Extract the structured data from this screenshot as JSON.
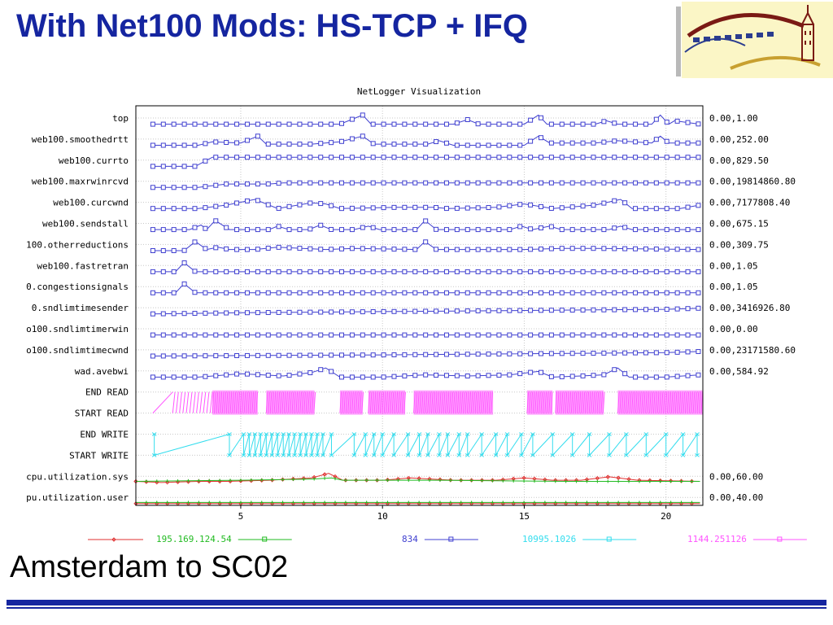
{
  "slide": {
    "title": "With Net100 Mods: HS-TCP + IFQ",
    "subtitle": "Amsterdam to SC02"
  },
  "colors": {
    "title": "#1525a0",
    "blue_series": "#4040d0",
    "magenta_series": "#ff55ff",
    "cyan_series": "#33ddee",
    "red_series": "#e03030",
    "green_series": "#22bb22",
    "logo_bg": "#fbf6c6",
    "logo_stroke": "#7a1a14"
  },
  "logo": {
    "icon": "building-arch-logo"
  },
  "chart_data": {
    "type": "line",
    "title": "NetLogger Visualization",
    "xlim": [
      1.3,
      21.3
    ],
    "xticks": [
      5,
      10,
      15,
      20
    ],
    "grid": true,
    "rows": [
      {
        "label": "top",
        "range": "0.00,1.00"
      },
      {
        "label": "web100.smoothedrtt",
        "range": "0.00,252.00"
      },
      {
        "label": "web100.currto",
        "range": "0.00,829.50"
      },
      {
        "label": "web100.maxrwinrcvd",
        "range": "0.00,19814860.80"
      },
      {
        "label": "web100.curcwnd",
        "range": "0.00,7177808.40"
      },
      {
        "label": "web100.sendstall",
        "range": "0.00,675.15"
      },
      {
        "label": "100.otherreductions",
        "range": "0.00,309.75"
      },
      {
        "label": "web100.fastretran",
        "range": "0.00,1.05"
      },
      {
        "label": "0.congestionsignals",
        "range": "0.00,1.05"
      },
      {
        "label": "0.sndlimtimesender",
        "range": "0.00,3416926.80"
      },
      {
        "label": "o100.sndlimtimerwin",
        "range": "0.00,0.00"
      },
      {
        "label": "o100.sndlimtimecwnd",
        "range": "0.00,23171580.60"
      },
      {
        "label": "wad.avebwi",
        "range": "0.00,584.92"
      },
      {
        "label": "END READ",
        "range": ""
      },
      {
        "label": "START READ",
        "range": ""
      },
      {
        "label": "END WRITE",
        "range": ""
      },
      {
        "label": "START WRITE",
        "range": ""
      },
      {
        "label": "cpu.utilization.sys",
        "range": "0.00,60.00"
      },
      {
        "label": "pu.utilization.user",
        "range": "0.00,40.00"
      }
    ],
    "series": [
      {
        "row": 0,
        "values": [
          [
            1.9,
            0.1
          ],
          [
            5.0,
            0.1
          ],
          [
            8.5,
            0.1
          ],
          [
            9.3,
            0.9
          ],
          [
            9.6,
            0.1
          ],
          [
            12.5,
            0.1
          ],
          [
            13.0,
            0.5
          ],
          [
            13.4,
            0.1
          ],
          [
            15.0,
            0.1
          ],
          [
            15.5,
            0.9
          ],
          [
            15.8,
            0.1
          ],
          [
            17.5,
            0.1
          ],
          [
            17.9,
            0.4
          ],
          [
            18.3,
            0.1
          ],
          [
            19.5,
            0.1
          ],
          [
            19.8,
            0.9
          ],
          [
            20.1,
            0.1
          ],
          [
            20.3,
            0.4
          ],
          [
            21.2,
            0.1
          ]
        ]
      },
      {
        "row": 1,
        "values": [
          [
            1.9,
            0.1
          ],
          [
            3.5,
            0.1
          ],
          [
            4.0,
            0.4
          ],
          [
            5.0,
            0.3
          ],
          [
            5.6,
            0.9
          ],
          [
            5.9,
            0.2
          ],
          [
            7.5,
            0.2
          ],
          [
            8.5,
            0.4
          ],
          [
            9.3,
            0.9
          ],
          [
            9.7,
            0.2
          ],
          [
            11.6,
            0.2
          ],
          [
            12.0,
            0.5
          ],
          [
            12.5,
            0.1
          ],
          [
            15.0,
            0.1
          ],
          [
            15.5,
            0.9
          ],
          [
            15.9,
            0.3
          ],
          [
            17.5,
            0.3
          ],
          [
            18.3,
            0.5
          ],
          [
            19.5,
            0.3
          ],
          [
            19.8,
            0.9
          ],
          [
            20.1,
            0.3
          ],
          [
            21.2,
            0.3
          ]
        ]
      },
      {
        "row": 2,
        "values": [
          [
            1.9,
            0.1
          ],
          [
            3.4,
            0.1
          ],
          [
            4.0,
            0.9
          ],
          [
            21.2,
            0.9
          ]
        ]
      },
      {
        "row": 3,
        "values": [
          [
            1.9,
            0.1
          ],
          [
            3.5,
            0.1
          ],
          [
            4.5,
            0.4
          ],
          [
            6.0,
            0.4
          ],
          [
            6.5,
            0.5
          ],
          [
            21.2,
            0.5
          ]
        ]
      },
      {
        "row": 4,
        "values": [
          [
            1.9,
            0.1
          ],
          [
            3.5,
            0.1
          ],
          [
            4.5,
            0.4
          ],
          [
            5.5,
            0.9
          ],
          [
            6.3,
            0.1
          ],
          [
            7.5,
            0.6
          ],
          [
            8.0,
            0.5
          ],
          [
            8.5,
            0.1
          ],
          [
            10.5,
            0.2
          ],
          [
            11.8,
            0.2
          ],
          [
            12.3,
            0.1
          ],
          [
            14.0,
            0.2
          ],
          [
            15.0,
            0.5
          ],
          [
            16.0,
            0.1
          ],
          [
            17.5,
            0.4
          ],
          [
            18.4,
            0.9
          ],
          [
            18.8,
            0.1
          ],
          [
            20.5,
            0.1
          ],
          [
            21.2,
            0.4
          ]
        ]
      },
      {
        "row": 5,
        "values": [
          [
            1.9,
            0.1
          ],
          [
            3.2,
            0.1
          ],
          [
            3.6,
            0.5
          ],
          [
            3.8,
            0.1
          ],
          [
            4.1,
            0.9
          ],
          [
            4.6,
            0.1
          ],
          [
            6.0,
            0.1
          ],
          [
            6.3,
            0.4
          ],
          [
            6.7,
            0.1
          ],
          [
            7.4,
            0.1
          ],
          [
            7.8,
            0.5
          ],
          [
            8.2,
            0.1
          ],
          [
            9.0,
            0.1
          ],
          [
            9.5,
            0.4
          ],
          [
            9.9,
            0.1
          ],
          [
            11.2,
            0.1
          ],
          [
            11.5,
            0.9
          ],
          [
            11.9,
            0.1
          ],
          [
            14.5,
            0.1
          ],
          [
            14.9,
            0.4
          ],
          [
            15.3,
            0.1
          ],
          [
            15.9,
            0.4
          ],
          [
            16.3,
            0.1
          ],
          [
            18.0,
            0.1
          ],
          [
            18.4,
            0.4
          ],
          [
            18.8,
            0.1
          ],
          [
            21.2,
            0.1
          ]
        ]
      },
      {
        "row": 6,
        "values": [
          [
            1.9,
            0.1
          ],
          [
            3.0,
            0.1
          ],
          [
            3.4,
            0.9
          ],
          [
            3.8,
            0.2
          ],
          [
            4.2,
            0.4
          ],
          [
            4.6,
            0.2
          ],
          [
            5.5,
            0.2
          ],
          [
            6.3,
            0.4
          ],
          [
            8.0,
            0.2
          ],
          [
            9.0,
            0.3
          ],
          [
            11.2,
            0.2
          ],
          [
            11.5,
            0.9
          ],
          [
            11.9,
            0.2
          ],
          [
            15.0,
            0.2
          ],
          [
            16.3,
            0.3
          ],
          [
            17.5,
            0.3
          ],
          [
            21.2,
            0.2
          ]
        ]
      },
      {
        "row": 7,
        "values": [
          [
            1.9,
            0.1
          ],
          [
            2.7,
            0.1
          ],
          [
            3.0,
            0.9
          ],
          [
            3.4,
            0.1
          ],
          [
            21.2,
            0.1
          ]
        ]
      },
      {
        "row": 8,
        "values": [
          [
            1.9,
            0.1
          ],
          [
            2.7,
            0.1
          ],
          [
            3.0,
            0.9
          ],
          [
            3.4,
            0.1
          ],
          [
            19.7,
            0.1
          ],
          [
            21.2,
            0.1
          ]
        ]
      },
      {
        "row": 9,
        "values": [
          [
            1.9,
            0.1
          ],
          [
            5.0,
            0.2
          ],
          [
            10.0,
            0.3
          ],
          [
            15.0,
            0.4
          ],
          [
            20.0,
            0.5
          ],
          [
            21.2,
            0.6
          ]
        ]
      },
      {
        "row": 10,
        "values": [
          [
            1.9,
            0.1
          ],
          [
            21.2,
            0.1
          ]
        ]
      },
      {
        "row": 11,
        "values": [
          [
            1.9,
            0.1
          ],
          [
            10.0,
            0.2
          ],
          [
            20.0,
            0.4
          ],
          [
            21.2,
            0.5
          ]
        ]
      },
      {
        "row": 12,
        "values": [
          [
            1.9,
            0.1
          ],
          [
            3.5,
            0.1
          ],
          [
            5.0,
            0.4
          ],
          [
            6.5,
            0.2
          ],
          [
            7.5,
            0.5
          ],
          [
            8.0,
            0.9
          ],
          [
            8.5,
            0.1
          ],
          [
            10.0,
            0.1
          ],
          [
            11.5,
            0.3
          ],
          [
            13.0,
            0.2
          ],
          [
            14.5,
            0.3
          ],
          [
            15.5,
            0.6
          ],
          [
            16.0,
            0.1
          ],
          [
            17.0,
            0.2
          ],
          [
            17.8,
            0.3
          ],
          [
            18.3,
            0.9
          ],
          [
            18.7,
            0.1
          ],
          [
            20.0,
            0.1
          ],
          [
            21.2,
            0.3
          ]
        ]
      },
      {
        "row": 17,
        "values": [
          [
            1.3,
            0.2
          ],
          [
            2.2,
            0.1
          ],
          [
            3.5,
            0.2
          ],
          [
            4.5,
            0.2
          ],
          [
            6.0,
            0.3
          ],
          [
            7.5,
            0.5
          ],
          [
            8.1,
            0.9
          ],
          [
            8.6,
            0.3
          ],
          [
            10.0,
            0.3
          ],
          [
            11.0,
            0.5
          ],
          [
            12.5,
            0.3
          ],
          [
            14.0,
            0.3
          ],
          [
            15.0,
            0.5
          ],
          [
            16.0,
            0.3
          ],
          [
            17.0,
            0.3
          ],
          [
            18.0,
            0.6
          ],
          [
            19.0,
            0.3
          ],
          [
            21.2,
            0.2
          ]
        ]
      },
      {
        "row": 17,
        "values": [
          [
            1.3,
            0.2
          ],
          [
            5.0,
            0.3
          ],
          [
            7.5,
            0.4
          ],
          [
            8.2,
            0.5
          ],
          [
            8.6,
            0.3
          ],
          [
            12.0,
            0.3
          ],
          [
            16.5,
            0.2
          ],
          [
            21.2,
            0.2
          ]
        ]
      },
      {
        "row": 18,
        "values": [
          [
            1.3,
            0.1
          ],
          [
            21.2,
            0.1
          ]
        ]
      },
      {
        "row": 18,
        "values": [
          [
            1.3,
            0.2
          ],
          [
            21.2,
            0.2
          ]
        ]
      }
    ],
    "legend": [
      "195.169.124.54",
      "834",
      "10995.1026",
      "1144.251126"
    ]
  }
}
